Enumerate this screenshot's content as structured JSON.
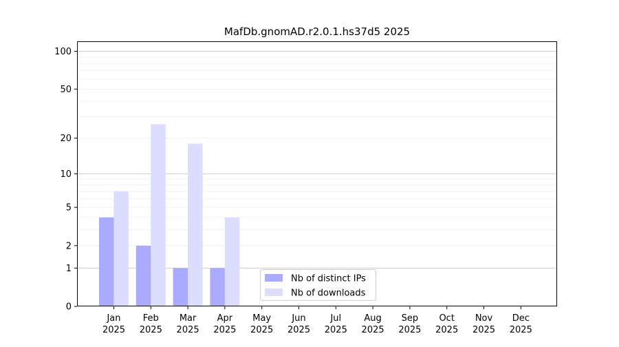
{
  "chart_data": {
    "type": "bar",
    "title": "MafDb.gnomAD.r2.0.1.hs37d5 2025",
    "xlabel": "",
    "ylabel": "",
    "y_scale": "log(1+y)",
    "ylim": [
      0,
      120
    ],
    "grid": true,
    "legend_position": "lower-center",
    "categories": [
      {
        "month": "Jan",
        "year": "2025"
      },
      {
        "month": "Feb",
        "year": "2025"
      },
      {
        "month": "Mar",
        "year": "2025"
      },
      {
        "month": "Apr",
        "year": "2025"
      },
      {
        "month": "May",
        "year": "2025"
      },
      {
        "month": "Jun",
        "year": "2025"
      },
      {
        "month": "Jul",
        "year": "2025"
      },
      {
        "month": "Aug",
        "year": "2025"
      },
      {
        "month": "Sep",
        "year": "2025"
      },
      {
        "month": "Oct",
        "year": "2025"
      },
      {
        "month": "Nov",
        "year": "2025"
      },
      {
        "month": "Dec",
        "year": "2025"
      }
    ],
    "y_ticks": [
      "0",
      "1",
      "2",
      "5",
      "10",
      "20",
      "50",
      "100"
    ],
    "series": [
      {
        "name": "Nb of distinct IPs",
        "color": "#aaaaff",
        "values": [
          4,
          2,
          1,
          1,
          0,
          0,
          0,
          0,
          0,
          0,
          0,
          0
        ]
      },
      {
        "name": "Nb of downloads",
        "color": "#ddddff",
        "values": [
          7,
          26,
          18,
          4,
          0,
          0,
          0,
          0,
          0,
          0,
          0,
          0
        ]
      }
    ]
  }
}
